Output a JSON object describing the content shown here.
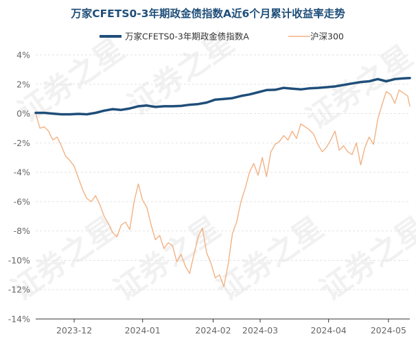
{
  "chart_data": {
    "type": "line",
    "title": "万家CFETS0-3年期政金债指数A近6个月累计收益率走势",
    "legend": {
      "placement": "top-center"
    },
    "series": [
      {
        "name": "万家CFETS0-3年期政金债指数A",
        "color": "#1f4e79",
        "emphasis": "thick",
        "x": [
          0,
          4,
          8,
          12,
          16,
          20,
          24,
          28,
          32,
          36,
          40,
          44,
          48,
          52,
          56,
          60,
          64,
          68,
          72,
          76,
          80,
          84,
          88,
          92,
          96,
          100,
          104,
          108,
          112,
          116,
          120,
          124,
          128,
          132,
          136,
          140,
          144,
          148,
          152,
          156,
          160,
          164,
          168,
          172,
          175
        ],
        "values": [
          0.05,
          0.05,
          0.0,
          -0.05,
          -0.05,
          -0.02,
          -0.05,
          0.05,
          0.2,
          0.3,
          0.25,
          0.35,
          0.5,
          0.55,
          0.45,
          0.5,
          0.5,
          0.52,
          0.6,
          0.65,
          0.75,
          0.95,
          1.0,
          1.05,
          1.2,
          1.3,
          1.45,
          1.6,
          1.62,
          1.75,
          1.7,
          1.65,
          1.72,
          1.75,
          1.8,
          1.85,
          1.95,
          2.05,
          2.15,
          2.2,
          2.35,
          2.2,
          2.35,
          2.4,
          2.42
        ]
      },
      {
        "name": "沪深300",
        "color": "#f2b183",
        "emphasis": "thin",
        "x": [
          0,
          2,
          4,
          6,
          8,
          10,
          12,
          14,
          16,
          18,
          20,
          22,
          24,
          26,
          28,
          30,
          32,
          34,
          36,
          38,
          40,
          42,
          44,
          46,
          48,
          50,
          52,
          54,
          56,
          58,
          60,
          62,
          64,
          66,
          68,
          70,
          72,
          74,
          76,
          78,
          80,
          82,
          84,
          86,
          88,
          90,
          92,
          94,
          96,
          98,
          100,
          102,
          104,
          106,
          108,
          110,
          112,
          114,
          116,
          118,
          120,
          122,
          124,
          126,
          128,
          130,
          132,
          134,
          136,
          138,
          140,
          142,
          144,
          146,
          148,
          150,
          152,
          154,
          156,
          158,
          160,
          162,
          164,
          166,
          168,
          170,
          172,
          174,
          175
        ],
        "values": [
          0.0,
          -1.0,
          -0.9,
          -1.2,
          -1.8,
          -1.6,
          -2.2,
          -2.9,
          -3.2,
          -3.6,
          -4.4,
          -5.2,
          -5.8,
          -6.0,
          -5.6,
          -6.2,
          -7.0,
          -7.5,
          -8.1,
          -8.4,
          -7.6,
          -7.4,
          -7.9,
          -6.0,
          -4.8,
          -5.9,
          -6.4,
          -7.6,
          -8.6,
          -8.3,
          -9.2,
          -8.8,
          -9.0,
          -10.1,
          -9.6,
          -10.4,
          -10.9,
          -9.6,
          -8.4,
          -7.8,
          -9.5,
          -10.2,
          -11.2,
          -11.0,
          -11.8,
          -10.3,
          -8.2,
          -7.4,
          -6.0,
          -5.1,
          -4.0,
          -3.4,
          -4.2,
          -3.0,
          -4.3,
          -2.6,
          -2.1,
          -1.9,
          -1.5,
          -1.8,
          -1.2,
          -1.7,
          -0.7,
          -0.9,
          -1.1,
          -1.4,
          -2.1,
          -2.6,
          -2.3,
          -1.8,
          -1.2,
          -2.5,
          -2.2,
          -2.6,
          -2.8,
          -2.0,
          -3.5,
          -2.3,
          -1.6,
          -2.1,
          -0.4,
          0.6,
          1.5,
          1.3,
          0.7,
          1.6,
          1.4,
          1.2,
          0.5
        ]
      }
    ],
    "xlim": [
      0,
      175
    ],
    "xticks": [
      {
        "label": "2023-12",
        "x": 18
      },
      {
        "label": "2024-01",
        "x": 50
      },
      {
        "label": "2024-02",
        "x": 83
      },
      {
        "label": "2024-03",
        "x": 105
      },
      {
        "label": "2024-04",
        "x": 137
      },
      {
        "label": "2024-05",
        "x": 165
      }
    ],
    "ylim": [
      -14,
      4
    ],
    "yticks": [
      4,
      2,
      0,
      -2,
      -4,
      -6,
      -8,
      -10,
      -12,
      -14
    ],
    "ytick_suffix": "%",
    "grid": true,
    "watermark": "证券之星"
  }
}
